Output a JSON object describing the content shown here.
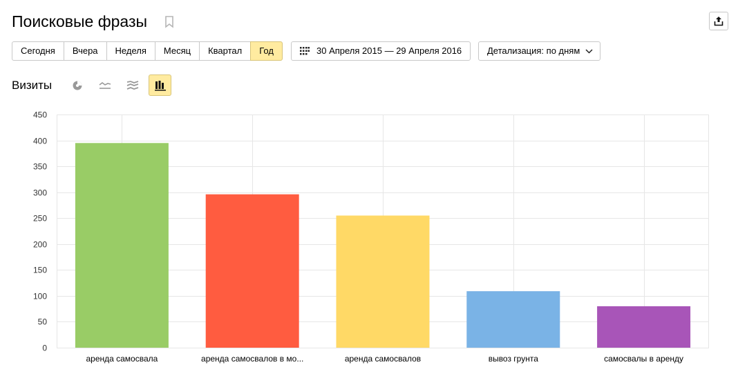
{
  "header": {
    "title": "Поисковые фразы",
    "bookmark_icon": "bookmark-icon",
    "export_icon": "export-icon"
  },
  "toolbar": {
    "periods": [
      "Сегодня",
      "Вчера",
      "Неделя",
      "Месяц",
      "Квартал",
      "Год"
    ],
    "active_period": "Год",
    "date_range": "30 Апреля 2015 — 29 Апреля 2016",
    "detail": "Детализация: по дням"
  },
  "metric": {
    "label": "Визиты",
    "chart_types": [
      "pie-chart-icon",
      "line-chart-icon",
      "area-chart-icon",
      "bar-chart-icon"
    ],
    "active_chart_type": "bar-chart-icon"
  },
  "colors": {
    "accent": "#ffeba0",
    "bars": [
      "#99cc66",
      "#ff5c40",
      "#ffd966",
      "#7ab3e6",
      "#a855b8"
    ]
  },
  "chart_data": {
    "type": "bar",
    "categories": [
      "аренда самосвала",
      "аренда самосвалов в мо...",
      "аренда самосвалов",
      "вывоз грунта",
      "самосвалы в аренду"
    ],
    "values": [
      395,
      296,
      255,
      109,
      80
    ],
    "ylim": [
      0,
      450
    ],
    "yticks": [
      0,
      50,
      100,
      150,
      200,
      250,
      300,
      350,
      400,
      450
    ],
    "grid": true
  }
}
